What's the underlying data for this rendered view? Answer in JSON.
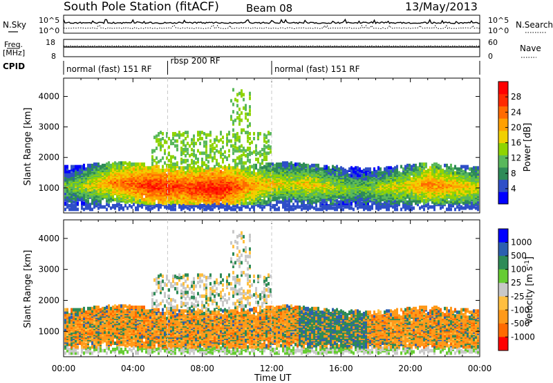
{
  "header": {
    "title": "South Pole Station (fitACF)",
    "beam": "Beam 08",
    "date": "13/May/2013"
  },
  "top_panels": {
    "nsky_label": "N.Sky",
    "nsearch_label": "N.Search",
    "freq_label_1": "Freq.",
    "freq_label_2": "[MHz]",
    "nave_label": "Nave",
    "cpid_label": "CPID",
    "noise_tick_hi": "10^5",
    "noise_tick_lo": "10^0",
    "freq_tick_hi": "18",
    "freq_tick_lo": "8",
    "nave_tick_hi": "60",
    "nave_tick_lo": "0"
  },
  "cpid_segments": [
    {
      "label": "normal (fast) 151 RF",
      "start_hour": 0,
      "end_hour": 6
    },
    {
      "label": "rbsp 200 RF",
      "start_hour": 6,
      "end_hour": 12
    },
    {
      "label": "normal (fast) 151 RF",
      "start_hour": 12,
      "end_hour": 24
    }
  ],
  "x_axis": {
    "label": "Time UT",
    "ticks": [
      "00:00",
      "04:00",
      "08:00",
      "12:00",
      "16:00",
      "20:00",
      "00:00"
    ],
    "range_hours": [
      0,
      24
    ]
  },
  "chart_data": [
    {
      "type": "heatmap",
      "name": "Power",
      "ylabel": "Slant Range [km]",
      "yticks": [
        "1000",
        "2000",
        "3000",
        "4000"
      ],
      "ylim": [
        180,
        4600
      ],
      "colorbar_label": "Power [dB]",
      "colorbar_ticks": [
        "4",
        "8",
        "12",
        "16",
        "20",
        "24",
        "28"
      ],
      "colorbar_range": [
        0,
        30
      ],
      "colors": [
        "#0000ff",
        "#2f4fc8",
        "#2e8b57",
        "#59b85b",
        "#8fd400",
        "#f0d000",
        "#ffa000",
        "#ff6a00",
        "#ff2a00",
        "#ff0000"
      ],
      "band_center_km": [
        1000,
        1030,
        1100,
        1150,
        1100,
        1050,
        1000,
        980,
        950,
        950,
        1000,
        1050,
        1100,
        1120,
        1080,
        1020,
        980,
        950,
        950,
        980,
        1050,
        1100,
        1050,
        1000,
        980
      ],
      "band_power_db": [
        12,
        14,
        18,
        22,
        24,
        27,
        26,
        25,
        27,
        28,
        24,
        20,
        18,
        16,
        18,
        16,
        14,
        12,
        14,
        16,
        18,
        22,
        20,
        18,
        16
      ]
    },
    {
      "type": "heatmap",
      "name": "Velocity",
      "ylabel": "Slant Range [km]",
      "yticks": [
        "1000",
        "2000",
        "3000",
        "4000"
      ],
      "ylim": [
        180,
        4600
      ],
      "colorbar_label": "Velocity [m s^-1]",
      "colorbar_ticks": [
        "1000",
        "500",
        "100",
        "25",
        "-25",
        "-100",
        "-500",
        "-1000"
      ],
      "colors": [
        "#ff0000",
        "#ff6a00",
        "#ff9a1a",
        "#ffbf40",
        "#c8c8c8",
        "#66cc33",
        "#2e8b57",
        "#2c5fb0",
        "#0000ff"
      ]
    }
  ]
}
